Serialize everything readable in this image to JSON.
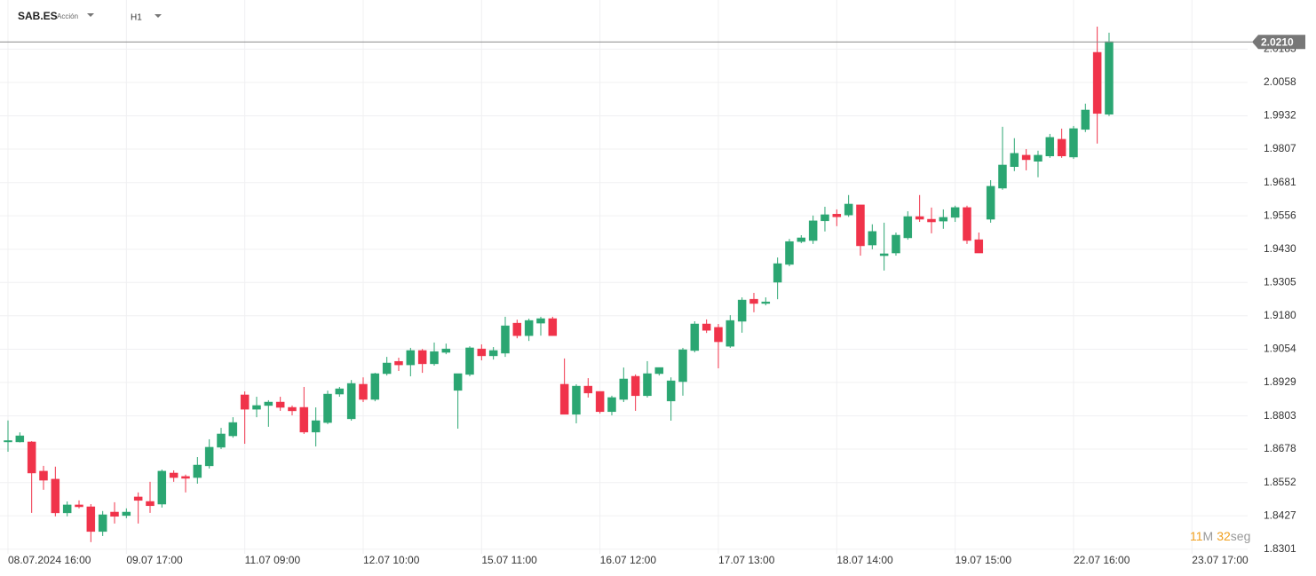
{
  "toolbar": {
    "symbol": "SAB.ES",
    "instrument_type": "Acción",
    "timeframe": "H1"
  },
  "countdown": {
    "minutes": "11",
    "minutes_unit": "M",
    "seconds": "32",
    "seconds_unit": "seg"
  },
  "chart_data": {
    "type": "candlestick",
    "up_color": "#2ba672",
    "down_color": "#f0334a",
    "grid": true,
    "ylim": [
      1.8284,
      2.0368
    ],
    "yticks": [
      1.8301,
      1.8427,
      1.8552,
      1.8678,
      1.8803,
      1.8929,
      1.9054,
      {
        "value": 1.918,
        "label": "1.9180"
      },
      1.9305,
      {
        "value": 1.943,
        "label": "1.9430"
      },
      1.9556,
      1.9681,
      1.9807,
      1.9932,
      2.0058,
      2.0183
    ],
    "last_price": {
      "value": 2.021,
      "label": "2.0210"
    },
    "categories": [
      "08.07.2024 16:00",
      null,
      null,
      null,
      null,
      null,
      null,
      null,
      null,
      null,
      "09.07 17:00",
      null,
      null,
      null,
      null,
      null,
      null,
      null,
      null,
      null,
      "11.07 09:00",
      null,
      null,
      null,
      null,
      null,
      null,
      null,
      null,
      null,
      "12.07 10:00",
      null,
      null,
      null,
      null,
      null,
      null,
      null,
      null,
      null,
      "15.07 11:00",
      null,
      null,
      null,
      null,
      null,
      null,
      null,
      null,
      null,
      "16.07 12:00",
      null,
      null,
      null,
      null,
      null,
      null,
      null,
      null,
      null,
      "17.07 13:00",
      null,
      null,
      null,
      null,
      null,
      null,
      null,
      null,
      null,
      "18.07 14:00",
      null,
      null,
      null,
      null,
      null,
      null,
      null,
      null,
      null,
      "19.07 15:00",
      null,
      null,
      null,
      null,
      null,
      null,
      null,
      null,
      null,
      "22.07 16:00",
      null,
      null,
      null,
      null,
      null,
      null,
      null,
      null,
      null,
      "23.07 17:00"
    ],
    "open": [
      1.8706,
      1.8705,
      1.8705,
      1.8595,
      1.8565,
      1.8438,
      1.8468,
      1.8461,
      1.8368,
      1.8441,
      1.8428,
      1.8498,
      1.8481,
      1.8471,
      1.8588,
      1.8575,
      1.8571,
      1.8615,
      1.8685,
      1.8728,
      1.8882,
      1.8828,
      1.8842,
      1.8855,
      1.8835,
      1.8835,
      1.8742,
      1.8778,
      1.8885,
      1.8792,
      1.8922,
      1.8865,
      1.8962,
      1.9008,
      1.8995,
      1.9049,
      1.8999,
      1.9042,
      1.8899,
      1.8959,
      1.9055,
      1.9029,
      1.9039,
      1.9152,
      1.9105,
      1.9152,
      1.9169,
      1.8922,
      1.8809,
      1.8915,
      1.8895,
      1.8819,
      1.8865,
      1.8952,
      1.8879,
      1.8962,
      1.8859,
      1.8932,
      1.9049,
      1.9149,
      1.9136,
      1.9065,
      1.9159,
      1.9242,
      1.9226,
      1.9306,
      1.9373,
      1.9459,
      1.9463,
      1.9537,
      1.9562,
      1.9559,
      1.9597,
      1.9446,
      1.9406,
      1.9416,
      1.9473,
      1.9553,
      1.9543,
      1.9536,
      1.955,
      1.9587,
      1.9466,
      1.9543,
      1.966,
      1.9741,
      1.9784,
      1.9761,
      1.9781,
      1.9844,
      1.9777,
      1.9881,
      2.0171,
      1.9938,
      null,
      null,
      null,
      null,
      null,
      null,
      null
    ],
    "high": [
      1.8786,
      1.8741,
      1.8708,
      1.8615,
      1.8612,
      1.8481,
      1.8485,
      1.8471,
      1.8445,
      1.8478,
      1.8455,
      1.8515,
      1.8555,
      1.8601,
      1.8598,
      1.8582,
      1.8648,
      1.8715,
      1.8758,
      1.8798,
      1.8895,
      1.8875,
      1.8862,
      1.8875,
      1.8842,
      1.8912,
      1.8835,
      1.8898,
      1.8912,
      1.8938,
      1.8948,
      1.8965,
      1.9025,
      1.9022,
      1.9059,
      1.9055,
      1.9079,
      1.9075,
      1.8962,
      1.9065,
      1.9072,
      1.9062,
      1.9176,
      1.9165,
      1.9169,
      1.9176,
      1.9176,
      1.9019,
      1.8922,
      1.8945,
      1.8895,
      1.8879,
      1.8985,
      1.8959,
      1.9009,
      1.8985,
      1.8948,
      1.9059,
      1.9159,
      1.9166,
      1.9149,
      1.9182,
      1.9249,
      1.9266,
      1.9249,
      1.9399,
      1.9469,
      1.9483,
      1.9557,
      1.959,
      1.958,
      1.9634,
      1.9597,
      1.9524,
      1.953,
      1.9493,
      1.9573,
      1.9634,
      1.9587,
      1.958,
      1.9594,
      1.9594,
      1.9493,
      1.969,
      1.9891,
      1.9848,
      1.9807,
      1.9801,
      1.9864,
      1.9884,
      1.9894,
      1.9978,
      2.0268,
      2.0245,
      null,
      null,
      null,
      null,
      null,
      null,
      null
    ],
    "low": [
      1.8668,
      1.8703,
      1.8438,
      1.8525,
      1.8425,
      1.8425,
      1.8455,
      1.8328,
      1.8351,
      1.8398,
      1.8418,
      1.8398,
      1.8438,
      1.8458,
      1.8555,
      1.8515,
      1.8548,
      1.8605,
      1.8678,
      1.8721,
      1.8698,
      1.8798,
      1.8762,
      1.8822,
      1.8805,
      1.8735,
      1.8688,
      1.8772,
      1.8875,
      1.8785,
      1.8855,
      1.8858,
      1.8955,
      1.8972,
      1.8952,
      1.8965,
      1.8992,
      1.9035,
      1.8755,
      1.8952,
      1.9012,
      1.9015,
      1.9025,
      1.9095,
      1.9085,
      1.9105,
      1.9105,
      1.8809,
      1.8775,
      1.8872,
      1.8812,
      1.8805,
      1.8855,
      1.8822,
      1.8872,
      1.8955,
      1.8785,
      1.8879,
      1.9042,
      1.9115,
      1.8982,
      1.9059,
      1.9116,
      1.9193,
      1.9219,
      1.9242,
      1.9366,
      1.9453,
      1.945,
      1.9497,
      1.9517,
      1.9552,
      1.9406,
      1.943,
      1.935,
      1.9406,
      1.9466,
      1.9533,
      1.949,
      1.9507,
      1.9533,
      1.945,
      1.9416,
      1.953,
      1.9654,
      1.9724,
      1.9727,
      1.9701,
      1.9774,
      1.9774,
      1.977,
      1.9871,
      1.9828,
      1.9931,
      null,
      null,
      null,
      null,
      null,
      null,
      null
    ],
    "close": [
      1.871,
      1.8728,
      1.8588,
      1.8561,
      1.8438,
      1.8468,
      1.8461,
      1.8368,
      1.8431,
      1.8425,
      1.8441,
      1.8485,
      1.8465,
      1.8595,
      1.8571,
      1.8568,
      1.8618,
      1.8685,
      1.8735,
      1.8778,
      1.8828,
      1.8842,
      1.8855,
      1.8835,
      1.8822,
      1.8742,
      1.8785,
      1.8885,
      1.8905,
      1.8925,
      1.8865,
      1.8962,
      1.9002,
      1.8995,
      1.9049,
      1.8999,
      1.9045,
      1.9055,
      1.8962,
      1.9059,
      1.9029,
      1.9049,
      1.9142,
      1.9105,
      1.9162,
      1.9169,
      1.9105,
      1.8809,
      1.8915,
      1.8889,
      1.8819,
      1.8872,
      1.8942,
      1.8879,
      1.8962,
      1.8985,
      1.8935,
      1.9052,
      1.9149,
      1.9125,
      1.9082,
      1.9162,
      1.9239,
      1.9226,
      1.9232,
      1.9376,
      1.9459,
      1.9473,
      1.9537,
      1.956,
      1.9552,
      1.96,
      1.9443,
      1.9497,
      1.9413,
      1.9483,
      1.9553,
      1.9543,
      1.9533,
      1.955,
      1.9587,
      1.9463,
      1.9416,
      1.9667,
      1.9747,
      1.9791,
      1.9767,
      1.9784,
      1.9851,
      1.9781,
      1.9884,
      1.9954,
      1.9941,
      2.0211,
      null,
      null,
      null,
      null,
      null,
      null,
      null
    ]
  }
}
